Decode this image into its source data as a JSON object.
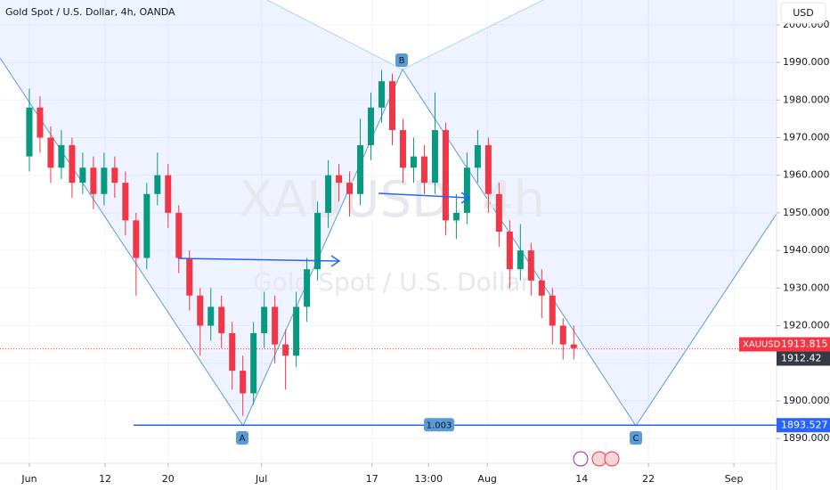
{
  "chart_data": {
    "type": "candlestick",
    "title": "Gold Spot / U.S. Dollar, 4h, OANDA",
    "watermark": "XAUUSD, 4h",
    "watermark_subtitle": "Gold Spot / U.S. Dollar",
    "currency": "USD",
    "symbol": "XAUUSD",
    "up_color": "#089981",
    "down_color": "#f23645",
    "x": [
      0,
      1,
      2,
      3,
      4,
      5,
      6,
      7,
      8,
      9,
      10,
      11,
      12,
      13,
      14,
      15,
      16,
      17,
      18,
      19,
      20,
      21,
      22,
      23,
      24,
      25,
      26,
      27,
      28,
      29,
      30,
      31,
      32,
      33,
      34,
      35,
      36,
      37,
      38,
      39,
      40,
      41,
      42,
      43,
      44,
      45,
      46,
      47,
      48,
      49,
      50,
      51
    ],
    "candles": [
      [
        1965,
        1983,
        1961,
        1978
      ],
      [
        1978,
        1981,
        1966,
        1970
      ],
      [
        1970,
        1973,
        1958,
        1962
      ],
      [
        1962,
        1972,
        1959,
        1968
      ],
      [
        1968,
        1970,
        1954,
        1958
      ],
      [
        1958,
        1966,
        1955,
        1962
      ],
      [
        1962,
        1965,
        1951,
        1955
      ],
      [
        1955,
        1966,
        1952,
        1962
      ],
      [
        1962,
        1965,
        1954,
        1958
      ],
      [
        1958,
        1961,
        1944,
        1948
      ],
      [
        1948,
        1950,
        1928,
        1938
      ],
      [
        1938,
        1958,
        1935,
        1955
      ],
      [
        1955,
        1966,
        1952,
        1960
      ],
      [
        1960,
        1963,
        1946,
        1950
      ],
      [
        1950,
        1952,
        1934,
        1938
      ],
      [
        1938,
        1940,
        1924,
        1928
      ],
      [
        1928,
        1930,
        1912,
        1920
      ],
      [
        1920,
        1930,
        1916,
        1925
      ],
      [
        1925,
        1928,
        1914,
        1918
      ],
      [
        1918,
        1921,
        1903,
        1908
      ],
      [
        1908,
        1912,
        1896,
        1902
      ],
      [
        1902,
        1921,
        1899,
        1918
      ],
      [
        1918,
        1929,
        1914,
        1925
      ],
      [
        1925,
        1928,
        1910,
        1915
      ],
      [
        1915,
        1919,
        1903,
        1912
      ],
      [
        1912,
        1929,
        1909,
        1925
      ],
      [
        1925,
        1938,
        1921,
        1935
      ],
      [
        1935,
        1953,
        1932,
        1950
      ],
      [
        1950,
        1964,
        1946,
        1960
      ],
      [
        1960,
        1963,
        1953,
        1958
      ],
      [
        1958,
        1961,
        1949,
        1955
      ],
      [
        1955,
        1975,
        1952,
        1968
      ],
      [
        1968,
        1982,
        1964,
        1978
      ],
      [
        1978,
        1988,
        1974,
        1985
      ],
      [
        1985,
        1987,
        1968,
        1972
      ],
      [
        1972,
        1975,
        1958,
        1962
      ],
      [
        1962,
        1970,
        1958,
        1965
      ],
      [
        1965,
        1968,
        1955,
        1958
      ],
      [
        1958,
        1982,
        1955,
        1972
      ],
      [
        1972,
        1974,
        1944,
        1948
      ],
      [
        1948,
        1955,
        1943,
        1950
      ],
      [
        1950,
        1966,
        1947,
        1962
      ],
      [
        1962,
        1972,
        1958,
        1968
      ],
      [
        1968,
        1970,
        1950,
        1955
      ],
      [
        1955,
        1958,
        1941,
        1945
      ],
      [
        1945,
        1948,
        1930,
        1935
      ],
      [
        1935,
        1947,
        1932,
        1940
      ],
      [
        1940,
        1942,
        1928,
        1932
      ],
      [
        1932,
        1935,
        1922,
        1928
      ],
      [
        1928,
        1930,
        1915,
        1920
      ],
      [
        1920,
        1922,
        1911,
        1915
      ],
      [
        1915,
        1920,
        1911,
        1914
      ]
    ],
    "xlim": [
      -2.75,
      70
    ],
    "xticks": [
      {
        "value": 0,
        "label": "Jun"
      },
      {
        "value": 7.1,
        "label": "12"
      },
      {
        "value": 13,
        "label": "20"
      },
      {
        "value": 21.75,
        "label": "Jul"
      },
      {
        "value": 32.1,
        "label": "17"
      },
      {
        "value": 37.4,
        "label": "13:00"
      },
      {
        "value": 42.9,
        "label": "Aug"
      },
      {
        "value": 51.75,
        "label": "14"
      },
      {
        "value": 58,
        "label": "22"
      },
      {
        "value": 66,
        "label": "Sep"
      }
    ],
    "ylim": [
      1883.4,
      2006.6
    ],
    "yticks": [
      {
        "value": 2000,
        "label": "2000.000"
      },
      {
        "value": 1990,
        "label": "1990.000"
      },
      {
        "value": 1980,
        "label": "1980.000"
      },
      {
        "value": 1970,
        "label": "1970.000"
      },
      {
        "value": 1960,
        "label": "1960.000"
      },
      {
        "value": 1950,
        "label": "1950.000"
      },
      {
        "value": 1940,
        "label": "1940.000"
      },
      {
        "value": 1930,
        "label": "1930.000"
      },
      {
        "value": 1920,
        "label": "1920.000"
      },
      {
        "value": 1910,
        "label": "1910.000"
      },
      {
        "value": 1900,
        "label": "1900.000"
      },
      {
        "value": 1890,
        "label": "1890.000"
      }
    ],
    "grid": true,
    "last_price": 1913.815,
    "current_price": 1912.42,
    "level_price": 1893.527,
    "pattern_labels": [
      "A",
      "B",
      "C"
    ],
    "pattern_ratio": "1.003"
  }
}
